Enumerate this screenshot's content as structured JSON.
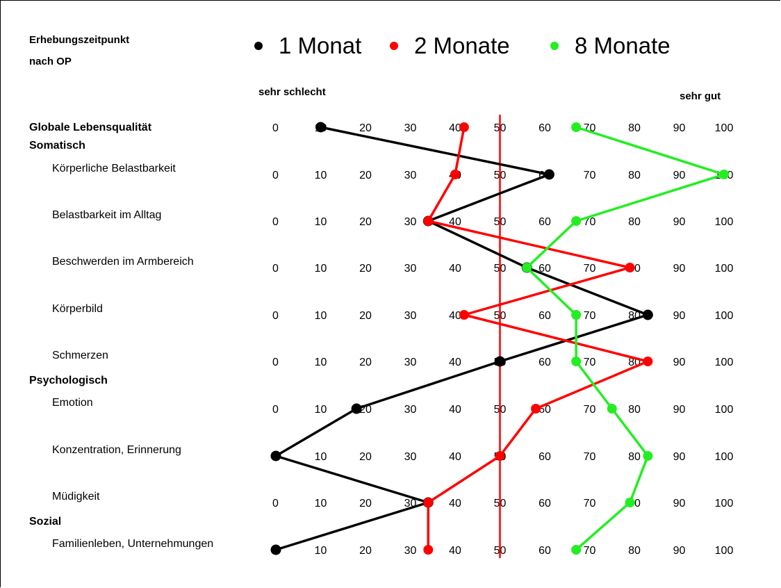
{
  "chart_data": {
    "type": "line",
    "legend_title": [
      "Erhebungszeitpunkt",
      "nach OP"
    ],
    "low_label": "sehr schlecht",
    "high_label": "sehr gut",
    "ticks": [
      0,
      10,
      20,
      30,
      40,
      50,
      60,
      70,
      80,
      90,
      100
    ],
    "reference_value": 50,
    "reference_color": "#ff0000",
    "rows": [
      {
        "label": "Globale Lebensqualität",
        "kind": "category",
        "has_axis": true
      },
      {
        "label": "Somatisch",
        "kind": "category",
        "has_axis": false
      },
      {
        "label": "Körperliche Belastbarkeit",
        "kind": "item",
        "has_axis": true
      },
      {
        "label": "Belastbarkeit im Alltag",
        "kind": "item",
        "has_axis": true
      },
      {
        "label": "Beschwerden im Armbereich",
        "kind": "item",
        "has_axis": true
      },
      {
        "label": "Körperbild",
        "kind": "item",
        "has_axis": true
      },
      {
        "label": "Schmerzen",
        "kind": "item",
        "has_axis": true
      },
      {
        "label": "Psychologisch",
        "kind": "category",
        "has_axis": false
      },
      {
        "label": "Emotion",
        "kind": "item",
        "has_axis": true
      },
      {
        "label": "Konzentration, Erinnerung",
        "kind": "item",
        "has_axis": true
      },
      {
        "label": "Müdigkeit",
        "kind": "item",
        "has_axis": true
      },
      {
        "label": "Sozial",
        "kind": "category",
        "has_axis": false
      },
      {
        "label": "Familienleben, Unternehmungen",
        "kind": "item",
        "has_axis": true
      }
    ],
    "series": [
      {
        "name": "1 Monat",
        "color": "#000000",
        "values": [
          10,
          61,
          34,
          56,
          83,
          50,
          18,
          0,
          34,
          0
        ]
      },
      {
        "name": "2 Monate",
        "color": "#ff0000",
        "values": [
          42,
          40,
          34,
          79,
          42,
          83,
          58,
          50,
          34,
          34
        ]
      },
      {
        "name": "8 Monate",
        "color": "#22ee22",
        "values": [
          67,
          100,
          67,
          56,
          67,
          67,
          75,
          83,
          79,
          67
        ]
      }
    ],
    "xlim": [
      0,
      100
    ]
  }
}
